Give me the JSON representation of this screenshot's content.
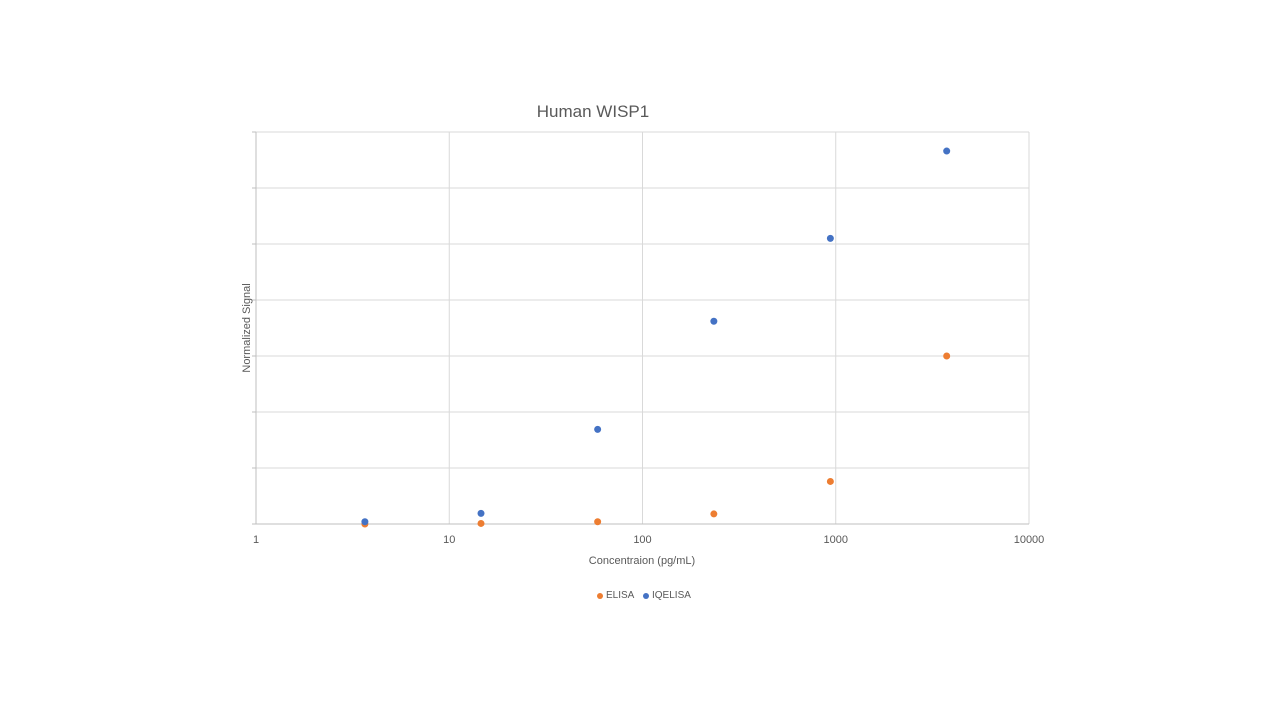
{
  "chart_data": {
    "type": "scatter",
    "title": "Human WISP1",
    "xlabel": "Concentraion (pg/mL)",
    "ylabel": "Normalized Signal",
    "x_scale": "log",
    "xlim": [
      1,
      10000
    ],
    "x_ticks": [
      "1",
      "10",
      "100",
      "1000",
      "10000"
    ],
    "ylim": [
      0,
      7
    ],
    "y_ticks_labeled": false,
    "grid": true,
    "legend_position": "bottom",
    "series": [
      {
        "name": "ELISA",
        "color": "#ED7D31",
        "points": [
          {
            "x": 3.66,
            "y": 0.0
          },
          {
            "x": 14.6,
            "y": 0.01
          },
          {
            "x": 58.6,
            "y": 0.04
          },
          {
            "x": 234,
            "y": 0.18
          },
          {
            "x": 938,
            "y": 0.76
          },
          {
            "x": 3750,
            "y": 3.0
          }
        ]
      },
      {
        "name": "IQELISA",
        "color": "#4472C4",
        "points": [
          {
            "x": 3.66,
            "y": 0.04
          },
          {
            "x": 14.6,
            "y": 0.19
          },
          {
            "x": 58.6,
            "y": 1.69
          },
          {
            "x": 234,
            "y": 3.62
          },
          {
            "x": 938,
            "y": 5.1
          },
          {
            "x": 3750,
            "y": 6.66
          }
        ]
      }
    ]
  }
}
